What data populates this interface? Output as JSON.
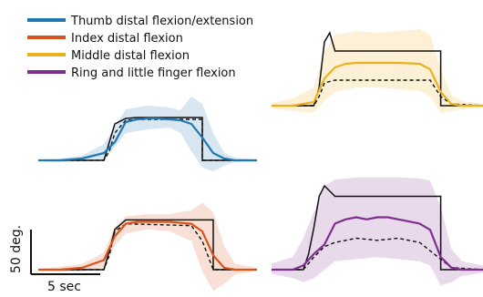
{
  "colors": {
    "thumb": "#1f77b4",
    "index": "#d9541a",
    "middle": "#edb120",
    "ring": "#7e2f8e",
    "target": "#111111"
  },
  "legend": [
    {
      "label": "Thumb distal flexion/extension",
      "color": "#1f77b4"
    },
    {
      "label": "Index distal flexion",
      "color": "#d9541a"
    },
    {
      "label": "Middle distal flexion",
      "color": "#edb120"
    },
    {
      "label": "Ring and little finger flexion",
      "color": "#7e2f8e"
    }
  ],
  "scale_bar": {
    "y_label": "50 deg.",
    "x_label": "5 sec"
  },
  "chart_data": [
    {
      "type": "line",
      "panel": "thumb",
      "series": [
        {
          "role": "mean",
          "x": [
            0,
            2,
            4,
            6,
            7,
            8,
            9,
            10,
            11,
            12,
            13,
            14,
            15,
            16,
            17,
            18,
            19,
            20
          ],
          "y": [
            0,
            0,
            2,
            8,
            20,
            42,
            45,
            46,
            46,
            45,
            44,
            40,
            25,
            8,
            2,
            0,
            0,
            0
          ]
        },
        {
          "role": "band-upper",
          "x": [
            0,
            2,
            4,
            6,
            8,
            10,
            12,
            13,
            14,
            15,
            16,
            17,
            18,
            20
          ],
          "y": [
            1,
            2,
            5,
            18,
            56,
            60,
            58,
            55,
            70,
            62,
            30,
            8,
            3,
            1
          ]
        },
        {
          "role": "band-lower",
          "x": [
            0,
            2,
            4,
            6,
            8,
            10,
            12,
            13,
            14,
            15,
            16,
            17,
            18,
            20
          ],
          "y": [
            -1,
            -2,
            -1,
            0,
            30,
            34,
            36,
            30,
            10,
            -8,
            -12,
            -6,
            -2,
            -1
          ]
        },
        {
          "role": "solid-target",
          "x": [
            0,
            6,
            6.5,
            7,
            8,
            9,
            15,
            15,
            16,
            20
          ],
          "y": [
            0,
            0,
            20,
            40,
            46,
            47,
            47,
            0,
            0,
            0
          ]
        },
        {
          "role": "dashed-target",
          "x": [
            0,
            6,
            6.5,
            7,
            8,
            9,
            15,
            15,
            16,
            20
          ],
          "y": [
            0,
            0,
            10,
            30,
            44,
            45,
            45,
            0,
            0,
            0
          ]
        }
      ]
    },
    {
      "type": "line",
      "panel": "middle",
      "series": [
        {
          "role": "mean",
          "x": [
            0,
            2,
            4,
            5,
            6,
            7,
            8,
            9,
            10,
            12,
            14,
            15,
            16,
            17,
            18,
            20
          ],
          "y": [
            0,
            0,
            4,
            30,
            42,
            46,
            47,
            47,
            47,
            47,
            46,
            40,
            15,
            2,
            0,
            0
          ]
        },
        {
          "role": "band-upper",
          "x": [
            0,
            2,
            4,
            5,
            6,
            8,
            10,
            12,
            14,
            15,
            16,
            17,
            18,
            20
          ],
          "y": [
            3,
            8,
            20,
            60,
            78,
            82,
            80,
            82,
            84,
            78,
            40,
            12,
            5,
            2
          ]
        },
        {
          "role": "band-lower",
          "x": [
            0,
            2,
            4,
            5,
            6,
            8,
            10,
            12,
            14,
            15,
            16,
            17,
            18,
            20
          ],
          "y": [
            -3,
            -6,
            -8,
            5,
            15,
            20,
            20,
            18,
            16,
            10,
            -8,
            -6,
            -4,
            -2
          ]
        },
        {
          "role": "solid-target",
          "x": [
            0,
            4,
            4.5,
            5,
            5.5,
            6,
            7,
            16,
            16,
            20
          ],
          "y": [
            0,
            0,
            20,
            70,
            80,
            60,
            60,
            60,
            0,
            0
          ]
        },
        {
          "role": "dashed-target",
          "x": [
            0,
            4,
            4.5,
            5,
            6,
            7,
            15,
            16,
            17,
            20
          ],
          "y": [
            0,
            0,
            10,
            25,
            28,
            28,
            28,
            10,
            2,
            0
          ]
        }
      ]
    },
    {
      "type": "line",
      "panel": "index",
      "series": [
        {
          "role": "mean",
          "x": [
            0,
            2,
            4,
            6,
            7,
            8,
            9,
            10,
            12,
            14,
            15,
            16,
            17,
            18,
            20
          ],
          "y": [
            0,
            0,
            2,
            10,
            35,
            48,
            50,
            50,
            50,
            48,
            40,
            15,
            2,
            0,
            0
          ]
        },
        {
          "role": "band-upper",
          "x": [
            0,
            2,
            4,
            6,
            7,
            8,
            10,
            12,
            14,
            15,
            16,
            17,
            18,
            20
          ],
          "y": [
            1,
            3,
            6,
            18,
            45,
            56,
            58,
            58,
            62,
            70,
            60,
            25,
            6,
            2
          ]
        },
        {
          "role": "band-lower",
          "x": [
            0,
            2,
            4,
            6,
            7,
            8,
            10,
            12,
            14,
            15,
            16,
            17,
            18,
            20
          ],
          "y": [
            -1,
            -2,
            -2,
            2,
            25,
            38,
            42,
            40,
            30,
            -2,
            -22,
            -15,
            -5,
            -1
          ]
        },
        {
          "role": "solid-target",
          "x": [
            0,
            6,
            6.5,
            7,
            8,
            9,
            16,
            16,
            20
          ],
          "y": [
            0,
            0,
            20,
            42,
            52,
            52,
            52,
            0,
            0
          ]
        },
        {
          "role": "dashed-target",
          "x": [
            0,
            6,
            6.5,
            7,
            8,
            14,
            15,
            16,
            20
          ],
          "y": [
            0,
            0,
            15,
            40,
            48,
            46,
            30,
            0,
            0
          ]
        }
      ]
    },
    {
      "type": "line",
      "panel": "ring",
      "series": [
        {
          "role": "mean",
          "x": [
            0,
            2,
            3,
            4,
            5,
            6,
            7,
            8,
            9,
            10,
            11,
            12,
            13,
            14,
            15,
            16,
            17,
            18,
            20
          ],
          "y": [
            0,
            0,
            4,
            15,
            24,
            44,
            48,
            50,
            48,
            50,
            50,
            48,
            46,
            44,
            38,
            12,
            2,
            0,
            0
          ]
        },
        {
          "role": "band-upper",
          "x": [
            0,
            2,
            3,
            4,
            5,
            6,
            8,
            10,
            12,
            14,
            15,
            16,
            17,
            18,
            20
          ],
          "y": [
            6,
            12,
            30,
            55,
            80,
            86,
            88,
            88,
            88,
            87,
            85,
            60,
            20,
            8,
            4
          ]
        },
        {
          "role": "band-lower",
          "x": [
            0,
            2,
            3,
            4,
            5,
            6,
            8,
            10,
            12,
            14,
            15,
            16,
            17,
            18,
            20
          ],
          "y": [
            -4,
            -8,
            -12,
            -8,
            0,
            8,
            10,
            12,
            10,
            8,
            4,
            -15,
            -12,
            -6,
            -3
          ]
        },
        {
          "role": "solid-target",
          "x": [
            0,
            3,
            3.5,
            4,
            4.5,
            5,
            6,
            16,
            16,
            20
          ],
          "y": [
            0,
            0,
            15,
            40,
            70,
            80,
            70,
            70,
            0,
            0
          ]
        },
        {
          "role": "dashed-target",
          "x": [
            0,
            3,
            4,
            5,
            6,
            8,
            10,
            12,
            14,
            16,
            17,
            20
          ],
          "y": [
            0,
            0,
            12,
            22,
            26,
            30,
            28,
            30,
            26,
            10,
            2,
            0
          ]
        }
      ]
    }
  ]
}
